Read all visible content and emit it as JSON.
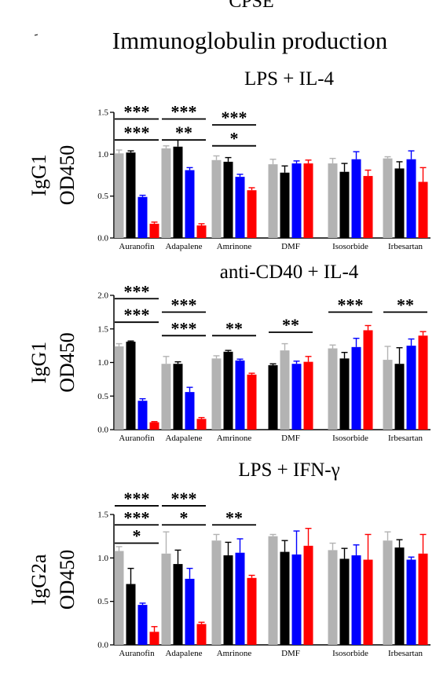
{
  "figure": {
    "top_label": "CPSE",
    "title": "Immunoglobulin production"
  },
  "colors": {
    "gray": "#b3b3b3",
    "black": "#000000",
    "blue": "#0000ff",
    "red": "#ff0000"
  },
  "chart_data": [
    {
      "type": "bar",
      "title": "LPS + IL-4",
      "ylabel_line1": "IgG1",
      "ylabel_line2": "OD450",
      "ylim": [
        0,
        1.5
      ],
      "yticks": [
        "0.0",
        "0.5",
        "1.0",
        "1.5"
      ],
      "categories": [
        "Auranofin",
        "Adapalene",
        "Amrinone",
        "DMF",
        "Isosorbide",
        "Irbesartan"
      ],
      "bars": [
        {
          "values": [
            1.01,
            1.02,
            0.49,
            0.17
          ],
          "errors": [
            0.04,
            0.02,
            0.02,
            0.02
          ],
          "colors": [
            "gray",
            "black",
            "blue",
            "red"
          ]
        },
        {
          "values": [
            1.07,
            1.09,
            0.81,
            0.15
          ],
          "errors": [
            0.03,
            0.08,
            0.03,
            0.02
          ],
          "colors": [
            "gray",
            "black",
            "blue",
            "red"
          ]
        },
        {
          "values": [
            0.93,
            0.91,
            0.73,
            0.57
          ],
          "errors": [
            0.05,
            0.05,
            0.03,
            0.03
          ],
          "colors": [
            "gray",
            "black",
            "blue",
            "red"
          ]
        },
        {
          "values": [
            0.88,
            0.78,
            0.89,
            0.89
          ],
          "errors": [
            0.06,
            0.08,
            0.03,
            0.04
          ],
          "colors": [
            "gray",
            "black",
            "blue",
            "red"
          ]
        },
        {
          "values": [
            0.89,
            0.79,
            0.94,
            0.74
          ],
          "errors": [
            0.06,
            0.1,
            0.09,
            0.07
          ],
          "colors": [
            "gray",
            "black",
            "blue",
            "red"
          ]
        },
        {
          "values": [
            0.95,
            0.83,
            0.94,
            0.67
          ],
          "errors": [
            0.02,
            0.08,
            0.1,
            0.17
          ],
          "colors": [
            "gray",
            "black",
            "blue",
            "red"
          ]
        }
      ],
      "significance": [
        {
          "label": "***",
          "from": 0,
          "to": 0,
          "y": 1.42
        },
        {
          "label": "***",
          "from": 0,
          "to": 0,
          "y": 1.17
        },
        {
          "label": "***",
          "from": 1,
          "to": 1,
          "y": 1.42
        },
        {
          "label": "**",
          "from": 1,
          "to": 1,
          "y": 1.17
        },
        {
          "label": "***",
          "from": 2,
          "to": 2,
          "y": 1.35
        },
        {
          "label": "*",
          "from": 2,
          "to": 2,
          "y": 1.1
        }
      ]
    },
    {
      "type": "bar",
      "title": "anti-CD40 + IL-4",
      "ylabel_line1": "IgG1",
      "ylabel_line2": "OD450",
      "ylim": [
        0,
        2.0
      ],
      "yticks": [
        "0.0",
        "0.5",
        "1.0",
        "1.5",
        "2.0"
      ],
      "categories": [
        "Auranofin",
        "Adapalene",
        "Amrinone",
        "DMF",
        "Isosorbide",
        "Irbesartan"
      ],
      "bars": [
        {
          "values": [
            1.24,
            1.31,
            0.43,
            0.11
          ],
          "errors": [
            0.04,
            0.01,
            0.03,
            0.01
          ],
          "colors": [
            "gray",
            "black",
            "blue",
            "red"
          ]
        },
        {
          "values": [
            0.98,
            0.98,
            0.56,
            0.16
          ],
          "errors": [
            0.11,
            0.03,
            0.07,
            0.02
          ],
          "colors": [
            "gray",
            "black",
            "blue",
            "red"
          ]
        },
        {
          "values": [
            1.06,
            1.16,
            1.03,
            0.82
          ],
          "errors": [
            0.04,
            0.02,
            0.02,
            0.02
          ],
          "colors": [
            "gray",
            "black",
            "blue",
            "red"
          ]
        },
        {
          "values": [
            0.96,
            1.18,
            0.98,
            1.01
          ],
          "errors": [
            0.02,
            0.1,
            0.04,
            0.08
          ],
          "colors": [
            "black",
            "gray",
            "blue",
            "red"
          ]
        },
        {
          "values": [
            1.21,
            1.06,
            1.23,
            1.48
          ],
          "errors": [
            0.05,
            0.09,
            0.13,
            0.07
          ],
          "colors": [
            "gray",
            "black",
            "blue",
            "red"
          ]
        },
        {
          "values": [
            1.04,
            0.98,
            1.25,
            1.4
          ],
          "errors": [
            0.2,
            0.24,
            0.1,
            0.06
          ],
          "colors": [
            "gray",
            "black",
            "blue",
            "red"
          ]
        }
      ],
      "significance": [
        {
          "label": "***",
          "from": 0,
          "to": 0,
          "y": 1.95
        },
        {
          "label": "***",
          "from": 0,
          "to": 0,
          "y": 1.6
        },
        {
          "label": "***",
          "from": 1,
          "to": 1,
          "y": 1.75
        },
        {
          "label": "***",
          "from": 1,
          "to": 1,
          "y": 1.4
        },
        {
          "label": "**",
          "from": 2,
          "to": 2,
          "y": 1.4
        },
        {
          "label": "**",
          "from": 3,
          "to": 3,
          "y": 1.45
        },
        {
          "label": "***",
          "from": 4,
          "to": 4,
          "y": 1.75
        },
        {
          "label": "**",
          "from": 5,
          "to": 5,
          "y": 1.75
        }
      ]
    },
    {
      "type": "bar",
      "title": "LPS + IFN-γ",
      "ylabel_line1": "IgG2a",
      "ylabel_line2": "OD450",
      "ylim": [
        0,
        1.5
      ],
      "yticks": [
        "0.0",
        "0.5",
        "1.0",
        "1.5"
      ],
      "categories": [
        "Auranofin",
        "Adapalene",
        "Amrinone",
        "DMF",
        "Isosorbide",
        "Irbesartan"
      ],
      "bars": [
        {
          "values": [
            1.08,
            0.7,
            0.46,
            0.15
          ],
          "errors": [
            0.05,
            0.18,
            0.02,
            0.06
          ],
          "colors": [
            "gray",
            "black",
            "blue",
            "red"
          ]
        },
        {
          "values": [
            1.05,
            0.93,
            0.76,
            0.24
          ],
          "errors": [
            0.25,
            0.16,
            0.12,
            0.02
          ],
          "colors": [
            "gray",
            "black",
            "blue",
            "red"
          ]
        },
        {
          "values": [
            1.2,
            1.03,
            1.06,
            0.77
          ],
          "errors": [
            0.07,
            0.15,
            0.16,
            0.03
          ],
          "colors": [
            "gray",
            "black",
            "blue",
            "red"
          ]
        },
        {
          "values": [
            1.25,
            1.07,
            1.04,
            1.14
          ],
          "errors": [
            0.02,
            0.13,
            0.27,
            0.2
          ],
          "colors": [
            "gray",
            "black",
            "blue",
            "red"
          ]
        },
        {
          "values": [
            1.09,
            0.99,
            1.03,
            0.98
          ],
          "errors": [
            0.08,
            0.12,
            0.12,
            0.29
          ],
          "colors": [
            "gray",
            "black",
            "blue",
            "red"
          ]
        },
        {
          "values": [
            1.2,
            1.12,
            0.98,
            1.05
          ],
          "errors": [
            0.1,
            0.09,
            0.03,
            0.22
          ],
          "colors": [
            "gray",
            "black",
            "blue",
            "red"
          ]
        }
      ],
      "significance": [
        {
          "label": "***",
          "from": 0,
          "to": 0,
          "y": 1.6
        },
        {
          "label": "***",
          "from": 0,
          "to": 0,
          "y": 1.38
        },
        {
          "label": "*",
          "from": 0,
          "to": 0,
          "y": 1.17
        },
        {
          "label": "***",
          "from": 1,
          "to": 1,
          "y": 1.6
        },
        {
          "label": "*",
          "from": 1,
          "to": 1,
          "y": 1.38
        },
        {
          "label": "**",
          "from": 2,
          "to": 2,
          "y": 1.38
        }
      ]
    }
  ]
}
